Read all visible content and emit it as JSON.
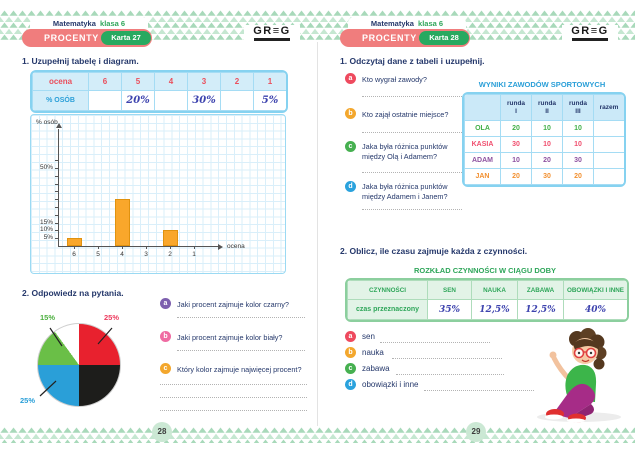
{
  "brand": {
    "logo": "GR≡G"
  },
  "left_page": {
    "header": {
      "subject": "Matematyka",
      "grade": "klasa 6",
      "topic": "PROCENTY",
      "card": "Karta 27"
    },
    "page_number": "28",
    "ex1": {
      "number": "1.",
      "title": "Uzupełnij tabelę i diagram.",
      "table": {
        "row1_label": "ocena",
        "row1_values": [
          "6",
          "5",
          "4",
          "3",
          "2",
          "1"
        ],
        "row2_label": "% OSÓB",
        "row2_values": [
          "",
          "20%",
          "",
          "30%",
          "",
          "5%"
        ]
      }
    },
    "ex2": {
      "number": "2.",
      "title": "Odpowiedz na pytania.",
      "questions": [
        {
          "letter": "a",
          "color": "#7d5fae",
          "text": "Jaki procent zajmuje kolor czarny?"
        },
        {
          "letter": "b",
          "color": "#ef6ba2",
          "text": "Jaki procent zajmuje kolor biały?"
        },
        {
          "letter": "c",
          "color": "#f3a72d",
          "text": "Który kolor zajmuje najwięcej procent?"
        }
      ]
    }
  },
  "right_page": {
    "header": {
      "subject": "Matematyka",
      "grade": "klasa 6",
      "topic": "PROCENTY",
      "card": "Karta 28"
    },
    "page_number": "29",
    "ex1": {
      "number": "1.",
      "title": "Odczytaj dane z tabeli i uzupełnij.",
      "questions": [
        {
          "letter": "a",
          "color": "#ee4a5e",
          "text": "Kto wygrał zawody?"
        },
        {
          "letter": "b",
          "color": "#f3a72d",
          "text": "Kto zajął ostatnie miejsce?"
        },
        {
          "letter": "c",
          "color": "#46b050",
          "text": "Jaka była różnica punktów między Olą i Adamem?"
        },
        {
          "letter": "d",
          "color": "#2aa2dd",
          "text": "Jaka była różnica punktów między Adamem i Janem?"
        }
      ],
      "results_table": {
        "title": "WYNIKI ZAWODÓW SPORTOWYCH",
        "round_headers": [
          {
            "top": "runda",
            "bottom": "I"
          },
          {
            "top": "runda",
            "bottom": "II"
          },
          {
            "top": "runda",
            "bottom": "III"
          }
        ],
        "total_header": "razem",
        "rows": [
          {
            "name": "OLA",
            "color": "#43b049",
            "values": [
              "20",
              "10",
              "10",
              ""
            ]
          },
          {
            "name": "KASIA",
            "color": "#f04e6e",
            "values": [
              "30",
              "10",
              "10",
              ""
            ]
          },
          {
            "name": "ADAM",
            "color": "#8e52a0",
            "values": [
              "10",
              "20",
              "30",
              ""
            ]
          },
          {
            "name": "JAN",
            "color": "#f29030",
            "values": [
              "20",
              "30",
              "20",
              ""
            ]
          }
        ]
      }
    },
    "ex2": {
      "number": "2.",
      "title": "Oblicz, ile czasu zajmuje każda z czynności.",
      "schedule_table": {
        "title": "ROZKŁAD CZYNNOŚCI W CIĄGU DOBY",
        "col_headers": [
          "CZYNNOŚCI",
          "SEN",
          "NAUKA",
          "ZABAWA",
          "OBOWIĄZKI I INNE"
        ],
        "row_label": "czas przeznaczony",
        "values": [
          "35%",
          "12,5%",
          "12,5%",
          "40%"
        ]
      },
      "items": [
        {
          "letter": "a",
          "color": "#ee4a5e",
          "label": "sen"
        },
        {
          "letter": "b",
          "color": "#f3a72d",
          "label": "nauka"
        },
        {
          "letter": "c",
          "color": "#46b050",
          "label": "zabawa"
        },
        {
          "letter": "d",
          "color": "#2aa2dd",
          "label": "obowiązki i inne"
        }
      ]
    }
  },
  "chart_data": [
    {
      "type": "bar",
      "title": "",
      "categories": [
        "6",
        "5",
        "4",
        "3",
        "2",
        "1"
      ],
      "values": [
        5,
        null,
        30,
        null,
        10,
        null
      ],
      "xlabel": "ocena",
      "ylabel": "% osób",
      "ylim": [
        0,
        55
      ],
      "y_tick_step": 5,
      "labeled_ticks": [
        5,
        10,
        15,
        50
      ],
      "bar_color": "#f9a72b",
      "grid": true,
      "legend": false
    },
    {
      "type": "pie",
      "title": "",
      "slices": [
        {
          "label": "czerwony",
          "value": 25,
          "color": "#e8212e"
        },
        {
          "label": "czarny",
          "value": 25,
          "color": "#1d1d1b"
        },
        {
          "label": "niebieski",
          "value": 25,
          "color": "#2a9fd8"
        },
        {
          "label": "zielony",
          "value": 15,
          "color": "#6abf47"
        },
        {
          "label": "biały",
          "value": 10,
          "color": "#ffffff"
        }
      ],
      "labels": [
        {
          "text": "15%",
          "color": "#4caf3f"
        },
        {
          "text": "25%",
          "color": "#ed3b5e"
        },
        {
          "text": "25%",
          "color": "#2a9fd8"
        }
      ],
      "legend": false
    }
  ]
}
